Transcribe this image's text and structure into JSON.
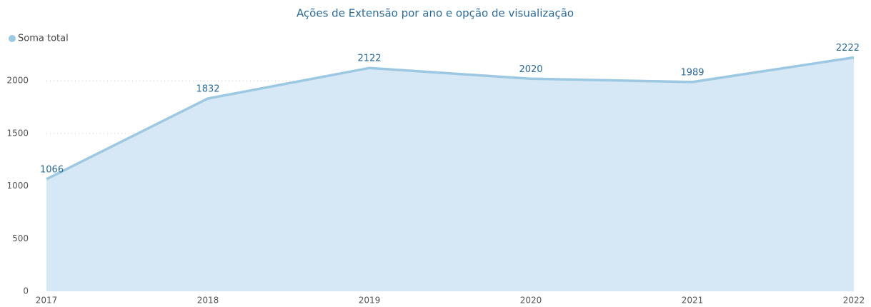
{
  "chart_data": {
    "type": "area",
    "title": "Ações de Extensão por ano e opção de visualização",
    "categories": [
      "2017",
      "2018",
      "2019",
      "2020",
      "2021",
      "2022"
    ],
    "series": [
      {
        "name": "Soma total",
        "color": "#9cc8e2",
        "fill": "#d6e8f5",
        "values": [
          1066,
          1832,
          2122,
          2020,
          1989,
          2222
        ]
      }
    ],
    "ylim": [
      0,
      2300
    ],
    "yticks": [
      0,
      500,
      1000,
      1500,
      2000
    ],
    "grid": true,
    "legend": "top-left"
  }
}
